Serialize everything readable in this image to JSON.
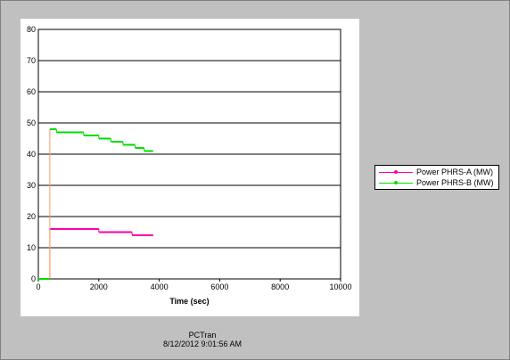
{
  "chart_data": {
    "type": "line",
    "title": "",
    "xlabel": "Time (sec)",
    "ylabel": "",
    "xlim": [
      0,
      10000
    ],
    "ylim": [
      0,
      80
    ],
    "x_ticks": [
      0,
      2000,
      4000,
      6000,
      8000,
      10000
    ],
    "y_ticks": [
      0,
      10,
      20,
      30,
      40,
      50,
      60,
      70,
      80
    ],
    "grid": true,
    "legend_position": "right",
    "series": [
      {
        "name": "Power PHRS-A (MW)",
        "color": "#ff00aa",
        "step": true,
        "points": [
          [
            0,
            0
          ],
          [
            380,
            0
          ],
          [
            380,
            16
          ],
          [
            2000,
            16
          ],
          [
            2000,
            15
          ],
          [
            3100,
            15
          ],
          [
            3100,
            14
          ],
          [
            3800,
            14
          ]
        ]
      },
      {
        "name": "Power PHRS-B (MW)",
        "color": "#00dd00",
        "step": true,
        "points": [
          [
            0,
            0
          ],
          [
            380,
            0
          ],
          [
            380,
            48
          ],
          [
            600,
            48
          ],
          [
            600,
            47
          ],
          [
            1500,
            47
          ],
          [
            1500,
            46
          ],
          [
            2000,
            46
          ],
          [
            2000,
            45
          ],
          [
            2400,
            45
          ],
          [
            2400,
            44
          ],
          [
            2800,
            44
          ],
          [
            2800,
            43
          ],
          [
            3200,
            43
          ],
          [
            3200,
            42
          ],
          [
            3500,
            42
          ],
          [
            3500,
            41
          ],
          [
            3800,
            41
          ]
        ]
      }
    ]
  },
  "footer": {
    "app_name": "PCTran",
    "timestamp": "8/12/2012 9:01:56 AM"
  }
}
